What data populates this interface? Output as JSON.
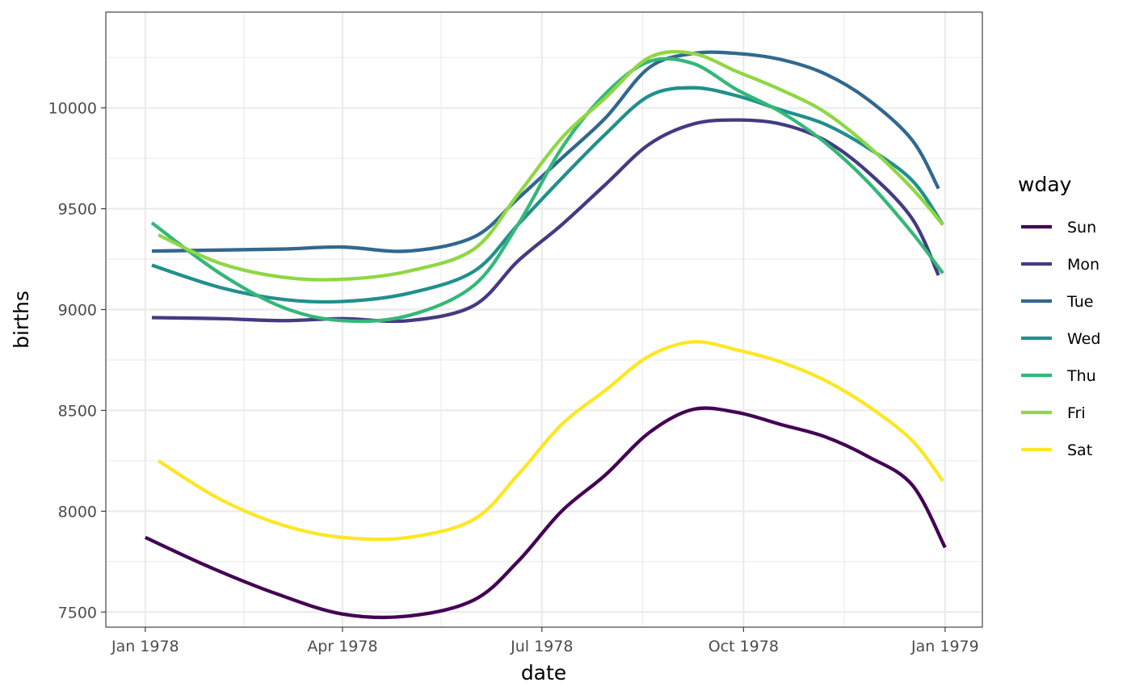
{
  "chart_data": {
    "type": "line",
    "xlabel": "date",
    "ylabel": "births",
    "xlim": [
      "1977-12-14",
      "1979-01-18"
    ],
    "ylim": [
      7425,
      10475
    ],
    "x_ticks": [
      {
        "date": "1978-01-01",
        "label": "Jan 1978"
      },
      {
        "date": "1978-04-01",
        "label": "Apr 1978"
      },
      {
        "date": "1978-07-01",
        "label": "Jul 1978"
      },
      {
        "date": "1978-10-01",
        "label": "Oct 1978"
      },
      {
        "date": "1979-01-01",
        "label": "Jan 1979"
      }
    ],
    "x_minor_ticks": [
      "1978-02-15",
      "1978-05-16",
      "1978-08-16",
      "1978-11-16"
    ],
    "y_ticks": [
      7500,
      8000,
      8500,
      9000,
      9500,
      10000
    ],
    "y_minor_ticks": [
      7750,
      8250,
      8750,
      9250,
      9750,
      10250
    ],
    "grid": true,
    "legend": {
      "title": "wday",
      "position": "right"
    },
    "series": [
      {
        "name": "Sun",
        "color": "#440154",
        "points": [
          [
            "1978-01-01",
            7870
          ],
          [
            "1978-01-31",
            7720
          ],
          [
            "1978-03-02",
            7590
          ],
          [
            "1978-04-01",
            7490
          ],
          [
            "1978-05-01",
            7480
          ],
          [
            "1978-05-31",
            7560
          ],
          [
            "1978-06-20",
            7750
          ],
          [
            "1978-07-10",
            8000
          ],
          [
            "1978-07-30",
            8180
          ],
          [
            "1978-08-19",
            8390
          ],
          [
            "1978-09-08",
            8505
          ],
          [
            "1978-09-28",
            8490
          ],
          [
            "1978-10-18",
            8430
          ],
          [
            "1978-11-07",
            8370
          ],
          [
            "1978-11-27",
            8270
          ],
          [
            "1978-12-17",
            8130
          ],
          [
            "1979-01-01",
            7820
          ]
        ]
      },
      {
        "name": "Mon",
        "color": "#443A83",
        "points": [
          [
            "1978-01-04",
            8960
          ],
          [
            "1978-02-04",
            8955
          ],
          [
            "1978-03-05",
            8945
          ],
          [
            "1978-04-01",
            8955
          ],
          [
            "1978-05-01",
            8945
          ],
          [
            "1978-05-31",
            9020
          ],
          [
            "1978-06-20",
            9240
          ],
          [
            "1978-07-10",
            9420
          ],
          [
            "1978-07-30",
            9620
          ],
          [
            "1978-08-19",
            9820
          ],
          [
            "1978-09-08",
            9920
          ],
          [
            "1978-09-28",
            9940
          ],
          [
            "1978-10-18",
            9920
          ],
          [
            "1978-11-07",
            9840
          ],
          [
            "1978-11-27",
            9680
          ],
          [
            "1978-12-17",
            9450
          ],
          [
            "1978-12-29",
            9170
          ]
        ]
      },
      {
        "name": "Tue",
        "color": "#31688E",
        "points": [
          [
            "1978-01-04",
            9290
          ],
          [
            "1978-02-04",
            9295
          ],
          [
            "1978-03-05",
            9300
          ],
          [
            "1978-04-01",
            9310
          ],
          [
            "1978-05-01",
            9290
          ],
          [
            "1978-05-31",
            9360
          ],
          [
            "1978-06-20",
            9550
          ],
          [
            "1978-07-10",
            9750
          ],
          [
            "1978-07-30",
            9950
          ],
          [
            "1978-08-19",
            10200
          ],
          [
            "1978-09-08",
            10270
          ],
          [
            "1978-09-28",
            10270
          ],
          [
            "1978-10-18",
            10240
          ],
          [
            "1978-11-07",
            10170
          ],
          [
            "1978-11-27",
            10040
          ],
          [
            "1978-12-17",
            9840
          ],
          [
            "1978-12-29",
            9600
          ]
        ]
      },
      {
        "name": "Wed",
        "color": "#21908C",
        "points": [
          [
            "1978-01-04",
            9220
          ],
          [
            "1978-02-04",
            9110
          ],
          [
            "1978-03-05",
            9050
          ],
          [
            "1978-04-01",
            9040
          ],
          [
            "1978-05-01",
            9080
          ],
          [
            "1978-05-31",
            9190
          ],
          [
            "1978-06-20",
            9420
          ],
          [
            "1978-07-10",
            9650
          ],
          [
            "1978-07-30",
            9870
          ],
          [
            "1978-08-19",
            10060
          ],
          [
            "1978-09-08",
            10100
          ],
          [
            "1978-09-28",
            10060
          ],
          [
            "1978-10-18",
            9990
          ],
          [
            "1978-11-07",
            9920
          ],
          [
            "1978-11-27",
            9800
          ],
          [
            "1978-12-17",
            9640
          ],
          [
            "1978-12-31",
            9420
          ]
        ]
      },
      {
        "name": "Thu",
        "color": "#35B779",
        "points": [
          [
            "1978-01-04",
            9430
          ],
          [
            "1978-02-04",
            9180
          ],
          [
            "1978-03-05",
            9010
          ],
          [
            "1978-04-01",
            8945
          ],
          [
            "1978-05-01",
            8970
          ],
          [
            "1978-05-31",
            9120
          ],
          [
            "1978-06-20",
            9420
          ],
          [
            "1978-07-10",
            9800
          ],
          [
            "1978-07-30",
            10070
          ],
          [
            "1978-08-19",
            10230
          ],
          [
            "1978-09-08",
            10220
          ],
          [
            "1978-09-28",
            10090
          ],
          [
            "1978-10-18",
            9980
          ],
          [
            "1978-11-07",
            9830
          ],
          [
            "1978-11-27",
            9630
          ],
          [
            "1978-12-17",
            9380
          ],
          [
            "1978-12-31",
            9180
          ]
        ]
      },
      {
        "name": "Fri",
        "color": "#8FD744",
        "points": [
          [
            "1978-01-07",
            9370
          ],
          [
            "1978-02-04",
            9230
          ],
          [
            "1978-03-05",
            9160
          ],
          [
            "1978-04-01",
            9150
          ],
          [
            "1978-05-01",
            9190
          ],
          [
            "1978-05-31",
            9300
          ],
          [
            "1978-06-20",
            9570
          ],
          [
            "1978-07-10",
            9850
          ],
          [
            "1978-07-30",
            10050
          ],
          [
            "1978-08-19",
            10250
          ],
          [
            "1978-09-08",
            10270
          ],
          [
            "1978-09-28",
            10180
          ],
          [
            "1978-10-18",
            10090
          ],
          [
            "1978-11-07",
            9980
          ],
          [
            "1978-11-27",
            9810
          ],
          [
            "1978-12-17",
            9600
          ],
          [
            "1978-12-31",
            9420
          ]
        ]
      },
      {
        "name": "Sat",
        "color": "#FDE725",
        "points": [
          [
            "1978-01-07",
            8250
          ],
          [
            "1978-02-04",
            8060
          ],
          [
            "1978-03-05",
            7930
          ],
          [
            "1978-04-01",
            7870
          ],
          [
            "1978-05-01",
            7870
          ],
          [
            "1978-05-31",
            7960
          ],
          [
            "1978-06-20",
            8180
          ],
          [
            "1978-07-10",
            8430
          ],
          [
            "1978-07-30",
            8600
          ],
          [
            "1978-08-19",
            8770
          ],
          [
            "1978-09-08",
            8840
          ],
          [
            "1978-09-28",
            8800
          ],
          [
            "1978-10-18",
            8740
          ],
          [
            "1978-11-07",
            8650
          ],
          [
            "1978-11-27",
            8520
          ],
          [
            "1978-12-17",
            8350
          ],
          [
            "1978-12-31",
            8150
          ]
        ]
      }
    ]
  }
}
